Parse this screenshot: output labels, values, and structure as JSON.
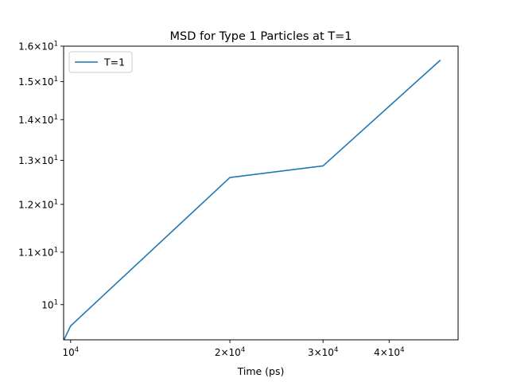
{
  "chart_data": {
    "type": "line",
    "title": "MSD for Type 1 Particles at T=1",
    "xlabel": "Time (ps)",
    "ylabel": "",
    "xscale": "log",
    "yscale": "log",
    "xlim": [
      9700,
      54000
    ],
    "ylim": [
      9.38,
      16.0
    ],
    "grid": false,
    "legend_loc": "upper left",
    "series": [
      {
        "name": "T=1",
        "color": "#1f77b4",
        "x": [
          9500,
          10000,
          20000,
          30000,
          50000
        ],
        "y": [
          9.2,
          9.62,
          12.6,
          12.87,
          15.6
        ]
      }
    ],
    "xticks": [
      {
        "value": 10000,
        "mantissa": "",
        "exp": "4"
      },
      {
        "value": 20000,
        "mantissa": "2×",
        "exp": "4"
      },
      {
        "value": 30000,
        "mantissa": "3×",
        "exp": "4"
      },
      {
        "value": 40000,
        "mantissa": "4×",
        "exp": "4"
      }
    ],
    "yticks": [
      {
        "value": 10,
        "mantissa": "",
        "exp": "1"
      },
      {
        "value": 11,
        "mantissa": "1.1×",
        "exp": "1"
      },
      {
        "value": 12,
        "mantissa": "1.2×",
        "exp": "1"
      },
      {
        "value": 13,
        "mantissa": "1.3×",
        "exp": "1"
      },
      {
        "value": 14,
        "mantissa": "1.4×",
        "exp": "1"
      },
      {
        "value": 15,
        "mantissa": "1.5×",
        "exp": "1"
      },
      {
        "value": 16,
        "mantissa": "1.6×",
        "exp": "1"
      }
    ]
  }
}
